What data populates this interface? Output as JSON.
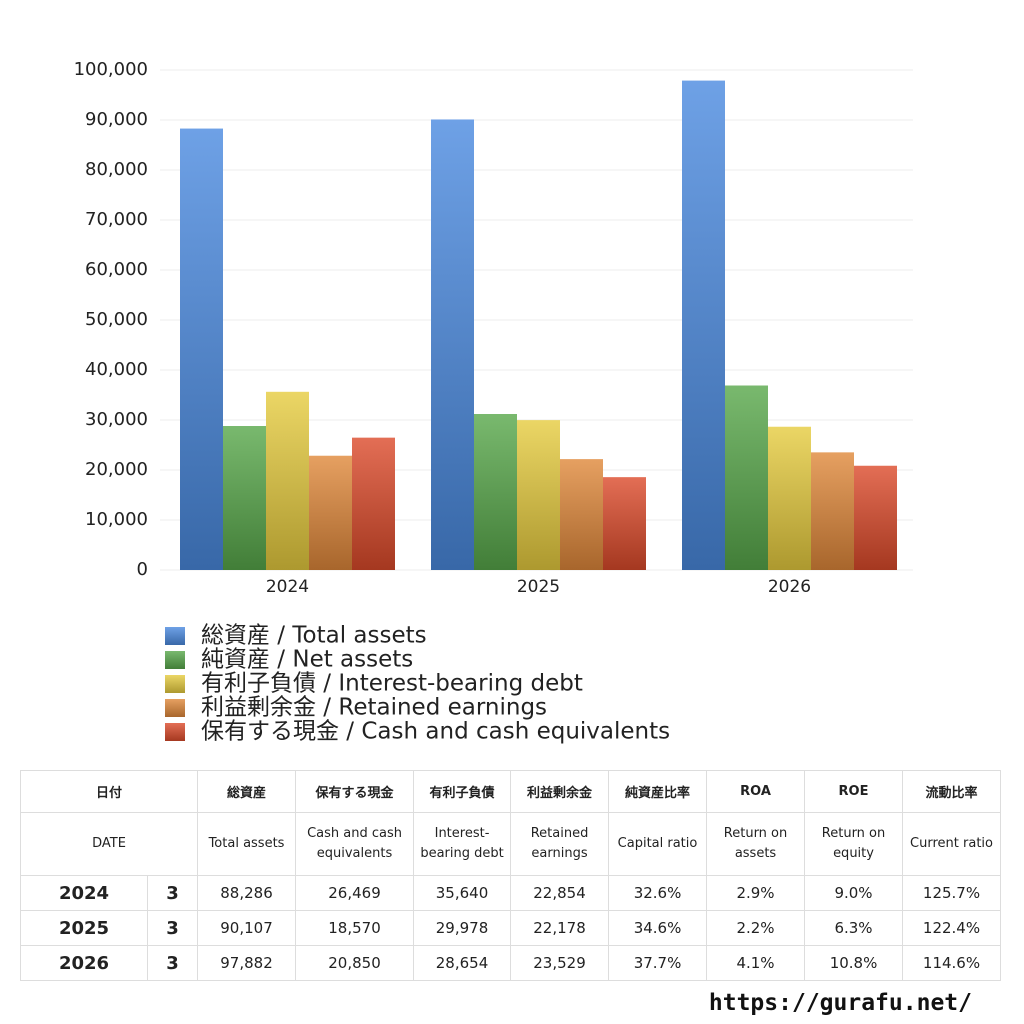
{
  "chart_data": {
    "type": "bar",
    "categories": [
      "2024",
      "2025",
      "2026"
    ],
    "series": [
      {
        "name": "総資産 / Total assets",
        "color": "#4a8ae0",
        "values": [
          88286,
          90107,
          97882
        ]
      },
      {
        "name": "純資産 / Net assets",
        "color": "#58a84a",
        "values": [
          28800,
          31200,
          36900
        ]
      },
      {
        "name": "有利子負債 / Interest-bearing debt",
        "color": "#e6cc3e",
        "values": [
          35640,
          29978,
          28654
        ]
      },
      {
        "name": "利益剰余金 / Retained earnings",
        "color": "#e0883a",
        "values": [
          22854,
          22178,
          23529
        ]
      },
      {
        "name": "保有する現金 /  Cash and cash equivalents",
        "color": "#dc4a2a",
        "values": [
          26469,
          18570,
          20850
        ]
      }
    ],
    "ylim": [
      0,
      100000
    ],
    "yticks": [
      0,
      {
        "value": 10000,
        "label": "10,000"
      },
      {
        "value": 20000,
        "label": "20,000"
      },
      {
        "value": 30000,
        "label": "30,000"
      },
      {
        "value": 40000,
        "label": "40,000"
      },
      {
        "value": 50000,
        "label": "50,000"
      },
      {
        "value": 60000,
        "label": "60,000"
      },
      {
        "value": 70000,
        "label": "70,000"
      },
      {
        "value": 80000,
        "label": "80,000"
      },
      {
        "value": 90000,
        "label": "90,000"
      },
      {
        "value": 100000,
        "label": "100,000"
      }
    ],
    "grid": true
  },
  "table": {
    "header_ja": [
      "日付",
      "総資産",
      "保有する現金",
      "有利子負債",
      "利益剰余金",
      "純資産比率",
      "ROA",
      "ROE",
      "流動比率"
    ],
    "header_en": [
      "DATE",
      "Total assets",
      "Cash and cash equivalents",
      "Interest-bearing debt",
      "Retained earnings",
      "Capital ratio",
      "Return on assets",
      "Return on equity",
      "Current ratio"
    ],
    "rows": [
      [
        "2024",
        "3",
        "88,286",
        "26,469",
        "35,640",
        "22,854",
        "32.6%",
        "2.9%",
        "9.0%",
        "125.7%"
      ],
      [
        "2025",
        "3",
        "90,107",
        "18,570",
        "29,978",
        "22,178",
        "34.6%",
        "2.2%",
        "6.3%",
        "122.4%"
      ],
      [
        "2026",
        "3",
        "97,882",
        "20,850",
        "28,654",
        "23,529",
        "37.7%",
        "4.1%",
        "10.8%",
        "114.6%"
      ]
    ]
  },
  "footer": "https://gurafu.net/"
}
